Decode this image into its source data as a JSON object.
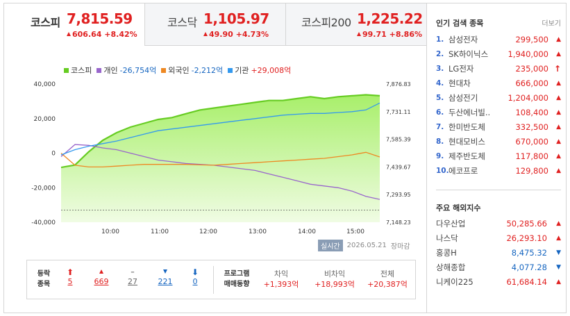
{
  "tabs": [
    {
      "name": "코스피",
      "value": "7,815.59",
      "change": "606.64 +8.42%",
      "active": true
    },
    {
      "name": "코스닥",
      "value": "1,105.97",
      "change": "49.90 +4.73%",
      "active": false
    },
    {
      "name": "코스피200",
      "value": "1,225.22",
      "change": "99.71 +8.86%",
      "active": false
    }
  ],
  "legend": [
    {
      "name": "코스피",
      "value": "",
      "color": "#66cc22"
    },
    {
      "name": "개인",
      "value": "-26,754억",
      "color": "#9966cc"
    },
    {
      "name": "외국인",
      "value": "-2,212억",
      "color": "#ee8822"
    },
    {
      "name": "기관",
      "value": "+29,008억",
      "color": "#3399ee"
    }
  ],
  "chart_data": {
    "type": "line",
    "x_ticks": [
      "10:00",
      "11:00",
      "12:00",
      "13:00",
      "14:00",
      "15:00"
    ],
    "y_left_ticks": [
      "40,000",
      "20,000",
      "0",
      "-20,000",
      "-40,000"
    ],
    "y_left_range": [
      -40000,
      40000
    ],
    "y_right_ticks": [
      "7,876.83",
      "7,731.11",
      "7,585.39",
      "7,439.67",
      "7,293.95",
      "7,148.23"
    ],
    "y_right_range": [
      7148.23,
      7876.83
    ],
    "series": [
      {
        "name": "코스피",
        "axis": "right",
        "color": "#66cc22",
        "values": [
          7437,
          7450,
          7520,
          7580,
          7620,
          7650,
          7670,
          7690,
          7700,
          7720,
          7740,
          7750,
          7760,
          7770,
          7780,
          7790,
          7790,
          7800,
          7810,
          7800,
          7810,
          7815,
          7820,
          7815
        ]
      },
      {
        "name": "개인",
        "axis": "left",
        "color": "#9966cc",
        "values": [
          -2000,
          5000,
          4500,
          3000,
          2000,
          0,
          -2000,
          -4000,
          -5000,
          -6000,
          -6500,
          -7000,
          -8000,
          -9000,
          -10000,
          -12000,
          -14000,
          -16000,
          -18000,
          -19000,
          -20000,
          -22000,
          -25000,
          -26754
        ]
      },
      {
        "name": "외국인",
        "axis": "left",
        "color": "#ee8822",
        "values": [
          0,
          -7000,
          -8000,
          -8000,
          -7500,
          -7000,
          -6500,
          -6500,
          -6500,
          -6500,
          -6800,
          -7000,
          -6500,
          -6000,
          -5500,
          -5000,
          -4500,
          -4000,
          -3500,
          -3000,
          -2000,
          -1000,
          500,
          -2212
        ]
      },
      {
        "name": "기관",
        "axis": "left",
        "color": "#3399ee",
        "values": [
          -1000,
          2000,
          4000,
          5500,
          7000,
          9000,
          11000,
          13000,
          14000,
          15000,
          16000,
          17000,
          18000,
          19000,
          20000,
          21000,
          22000,
          22500,
          23000,
          23000,
          23500,
          24000,
          25000,
          29008
        ]
      }
    ],
    "baseline_left": -33000
  },
  "stamp": {
    "badge": "실시간",
    "date": "2026.05.21",
    "status": "장마감"
  },
  "breadth": {
    "label_top": "등락",
    "label_bottom": "종목",
    "limit_up": "5",
    "up": "669",
    "flat": "27",
    "down": "221",
    "limit_down": "0"
  },
  "program": {
    "label_top": "프로그램",
    "label_bottom": "매매동향",
    "arbitrage_label": "차익",
    "arbitrage_value": "+1,393억",
    "non_arbitrage_label": "비차익",
    "non_arbitrage_value": "+18,993억",
    "total_label": "전체",
    "total_value": "+20,387억"
  },
  "popular": {
    "title": "인기 검색 종목",
    "more": "더보기",
    "items": [
      {
        "rank": "1.",
        "name": "삼성전자",
        "price": "299,500",
        "dir": "up"
      },
      {
        "rank": "2.",
        "name": "SK하이닉스",
        "price": "1,940,000",
        "dir": "up"
      },
      {
        "rank": "3.",
        "name": "LG전자",
        "price": "235,000",
        "dir": "limit"
      },
      {
        "rank": "4.",
        "name": "현대차",
        "price": "666,000",
        "dir": "up"
      },
      {
        "rank": "5.",
        "name": "삼성전기",
        "price": "1,204,000",
        "dir": "up"
      },
      {
        "rank": "6.",
        "name": "두산에너빌..",
        "price": "108,400",
        "dir": "up"
      },
      {
        "rank": "7.",
        "name": "한미반도체",
        "price": "332,500",
        "dir": "up"
      },
      {
        "rank": "8.",
        "name": "현대모비스",
        "price": "670,000",
        "dir": "up"
      },
      {
        "rank": "9.",
        "name": "제주반도체",
        "price": "117,800",
        "dir": "up"
      },
      {
        "rank": "10.",
        "name": "에코프로",
        "price": "129,800",
        "dir": "up"
      }
    ]
  },
  "world": {
    "title": "주요 해외지수",
    "items": [
      {
        "name": "다우산업",
        "value": "50,285.66",
        "dir": "up"
      },
      {
        "name": "나스닥",
        "value": "26,293.10",
        "dir": "up"
      },
      {
        "name": "홍콩H",
        "value": "8,475.32",
        "dir": "down"
      },
      {
        "name": "상해종합",
        "value": "4,077.28",
        "dir": "down"
      },
      {
        "name": "니케이225",
        "value": "61,684.14",
        "dir": "up"
      }
    ]
  }
}
